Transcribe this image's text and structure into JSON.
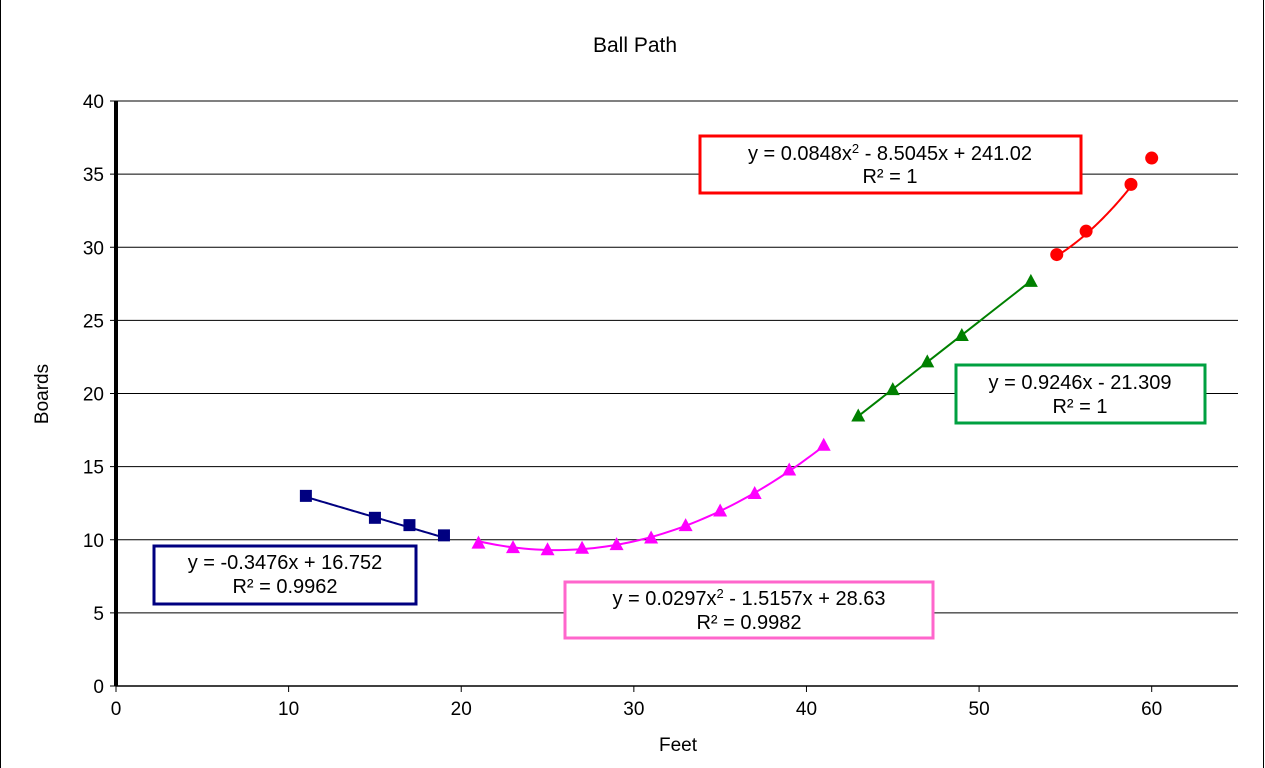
{
  "chart_data": {
    "type": "scatter",
    "title": "Ball Path",
    "xlabel": "Feet",
    "ylabel": "Boards",
    "xlim": [
      0,
      65
    ],
    "ylim": [
      0,
      40
    ],
    "x_ticks": [
      0,
      10,
      20,
      30,
      40,
      50,
      60
    ],
    "y_ticks": [
      0,
      5,
      10,
      15,
      20,
      25,
      30,
      35,
      40
    ],
    "grid": "horizontal",
    "series": [
      {
        "color": "#000080",
        "marker": "square",
        "trendline": {
          "kind": "linear",
          "coef": [
            16.752,
            -0.3476
          ],
          "xrange": [
            11,
            19
          ]
        },
        "points": [
          [
            11,
            13.0
          ],
          [
            15,
            11.5
          ],
          [
            17,
            11.0
          ],
          [
            19,
            10.3
          ]
        ],
        "equation": "y = -0.3476x + 16.752",
        "r2": "R² = 0.9962"
      },
      {
        "color": "#ff00ff",
        "marker": "triangle",
        "trendline": {
          "kind": "poly2",
          "coef": [
            28.63,
            -1.5157,
            0.0297
          ],
          "xrange": [
            21,
            41
          ]
        },
        "points": [
          [
            21,
            9.8
          ],
          [
            23,
            9.5
          ],
          [
            25,
            9.35
          ],
          [
            27,
            9.45
          ],
          [
            29,
            9.7
          ],
          [
            31,
            10.15
          ],
          [
            33,
            11.0
          ],
          [
            35,
            12.0
          ],
          [
            37,
            13.2
          ],
          [
            39,
            14.8
          ],
          [
            41,
            16.5
          ]
        ],
        "equation_prefix": "y = 0.0297x",
        "equation_suffix": " - 1.5157x + 28.63",
        "r2": "R² = 0.9982"
      },
      {
        "color": "#008000",
        "marker": "triangle",
        "trendline": {
          "kind": "linear",
          "coef": [
            -21.309,
            0.9246
          ],
          "xrange": [
            43,
            53
          ]
        },
        "points": [
          [
            43,
            18.5
          ],
          [
            45,
            20.3
          ],
          [
            47,
            22.2
          ],
          [
            49,
            24.0
          ],
          [
            53,
            27.7
          ]
        ],
        "equation": "y = 0.9246x - 21.309",
        "r2": "R² = 1"
      },
      {
        "color": "#ff0000",
        "marker": "circle",
        "trendline": {
          "kind": "poly2",
          "coef": [
            241.02,
            -8.5045,
            0.0848
          ],
          "xrange": [
            54.5,
            58.8
          ]
        },
        "points": [
          [
            54.5,
            29.5
          ],
          [
            56.2,
            31.1
          ],
          [
            58.8,
            34.3
          ],
          [
            60,
            36.1
          ]
        ],
        "equation_prefix": "y = 0.0848x",
        "equation_suffix": " - 8.5045x + 241.02",
        "r2": "R² = 1"
      }
    ]
  }
}
